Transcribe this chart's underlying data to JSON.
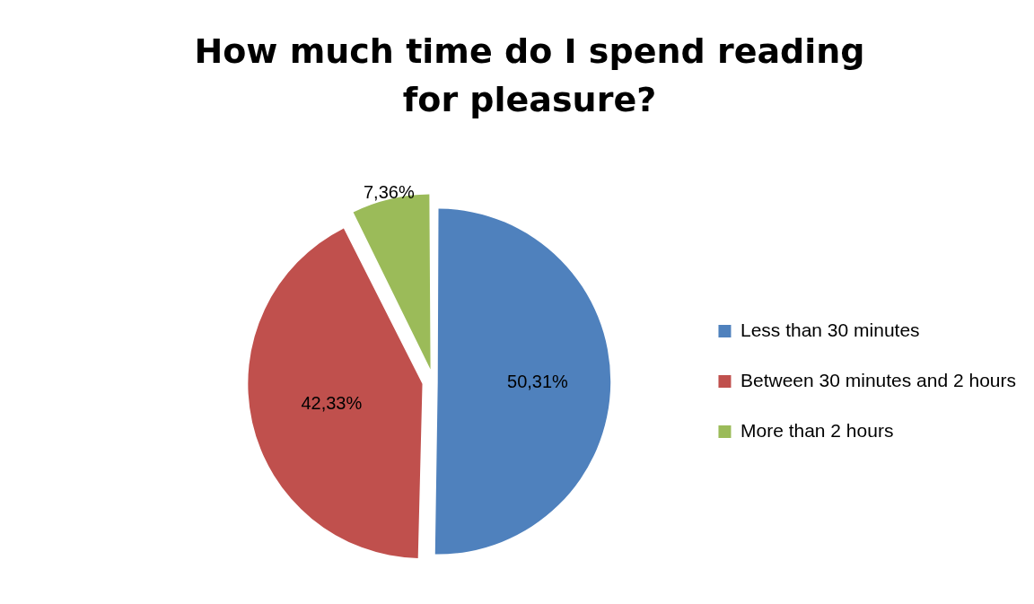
{
  "chart_data": {
    "type": "pie",
    "title": "How much time do I spend reading for pleasure?",
    "categories": [
      "Less than 30 minutes",
      "Between 30 minutes and 2 hours",
      "More than 2 hours"
    ],
    "values": [
      50.31,
      42.33,
      7.36
    ],
    "colors": [
      "#4f81bd",
      "#c0504d",
      "#9bbb59"
    ],
    "value_labels": [
      "50,31%",
      "42,33%",
      "7,36%"
    ],
    "legend": "right"
  }
}
